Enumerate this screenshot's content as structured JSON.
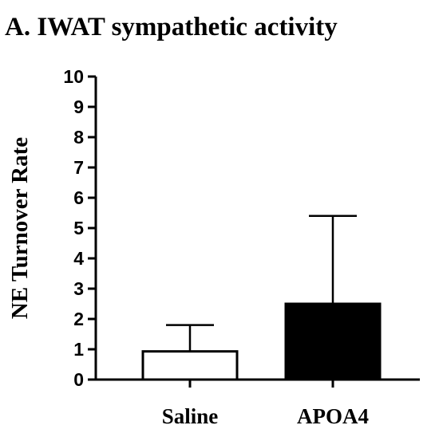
{
  "chart_data": {
    "type": "bar",
    "title": "A. IWAT sympathetic activity",
    "xlabel": "",
    "ylabel": "NE Turnover Rate",
    "ylim": [
      0,
      10
    ],
    "yticks": [
      "0",
      "1",
      "2",
      "3",
      "4",
      "5",
      "6",
      "7",
      "8",
      "9",
      "10"
    ],
    "categories": [
      "Saline",
      "APOA4"
    ],
    "values": [
      0.93,
      2.5
    ],
    "error_upper": [
      1.8,
      5.4
    ],
    "bar_colors": [
      "#ffffff",
      "#000000"
    ],
    "bar_edge_color": "#000000",
    "grid": false,
    "legend": "none"
  }
}
